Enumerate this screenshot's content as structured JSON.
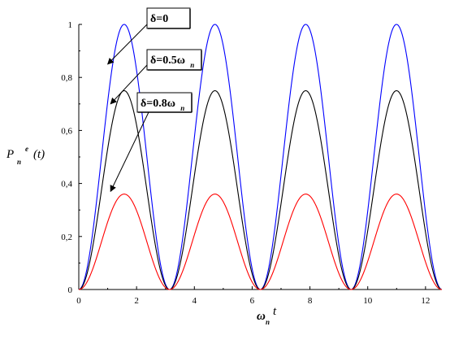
{
  "chart_data": {
    "type": "line",
    "xlabel": {
      "main": "ω",
      "sub": "n",
      "suffix": "t"
    },
    "ylabel": {
      "main": "P",
      "sub": "n",
      "sup": "e",
      "suffix": "(t)"
    },
    "xlim": [
      0,
      12.566
    ],
    "ylim": [
      0,
      1
    ],
    "xticks": [
      0,
      2,
      4,
      6,
      8,
      10,
      12
    ],
    "xtick_labels": [
      "0",
      "2",
      "4",
      "6",
      "8",
      "10",
      "12"
    ],
    "yticks": [
      0,
      0.2,
      0.4,
      0.6,
      0.8,
      1
    ],
    "ytick_labels": [
      "0",
      "0,2",
      "0,4",
      "0,6",
      "0,8",
      "1"
    ],
    "grid": false,
    "series": [
      {
        "delta_ratio": 0,
        "color": "#0000ff",
        "peak": 1.0,
        "period": 3.1416,
        "peaks_at": [
          1.571,
          4.712,
          7.854,
          10.996
        ]
      },
      {
        "delta_ratio": 0.5,
        "color": "#000000",
        "peak": 0.75,
        "period": 3.1416,
        "peaks_at": [
          1.571,
          4.712,
          7.854,
          10.996
        ]
      },
      {
        "delta_ratio": 0.8,
        "color": "#ff0000",
        "peak": 0.36,
        "period": 3.1416,
        "peaks_at": [
          1.571,
          4.712,
          7.854,
          10.996
        ]
      }
    ],
    "annotations": [
      {
        "text": "δ=0",
        "sub": "",
        "target": [
          1.0,
          0.85
        ]
      },
      {
        "text": "δ=0.5ω",
        "sub": "n",
        "target": [
          1.1,
          0.7
        ]
      },
      {
        "text": "δ=0.8ω",
        "sub": "n",
        "target": [
          1.1,
          0.37
        ]
      }
    ]
  }
}
